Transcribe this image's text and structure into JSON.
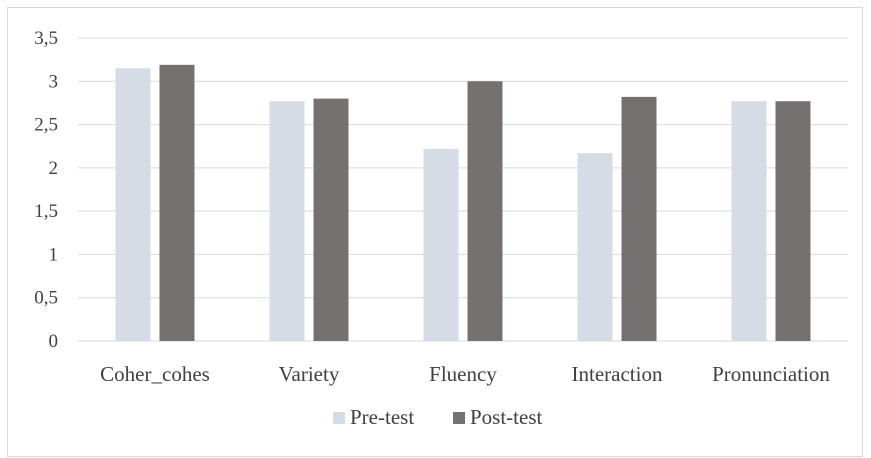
{
  "chart_data": {
    "type": "bar",
    "categories": [
      "Coher_cohes",
      "Variety",
      "Fluency",
      "Interaction",
      "Pronunciation"
    ],
    "series": [
      {
        "name": "Pre-test",
        "values": [
          3.15,
          2.77,
          2.22,
          2.17,
          2.77
        ],
        "color": "#d6dce5"
      },
      {
        "name": "Post-test",
        "values": [
          3.19,
          2.8,
          3.0,
          2.82,
          2.77
        ],
        "color": "#767171"
      }
    ],
    "yticks": [
      "0",
      "0,5",
      "1",
      "1,5",
      "2",
      "2,5",
      "3",
      "3,5"
    ],
    "ylim": [
      0,
      3.5
    ],
    "grid": true,
    "legend_position": "bottom",
    "colors": {
      "gridline": "#d9d9d9",
      "axis": "#d9d9d9",
      "text": "#404040"
    }
  }
}
